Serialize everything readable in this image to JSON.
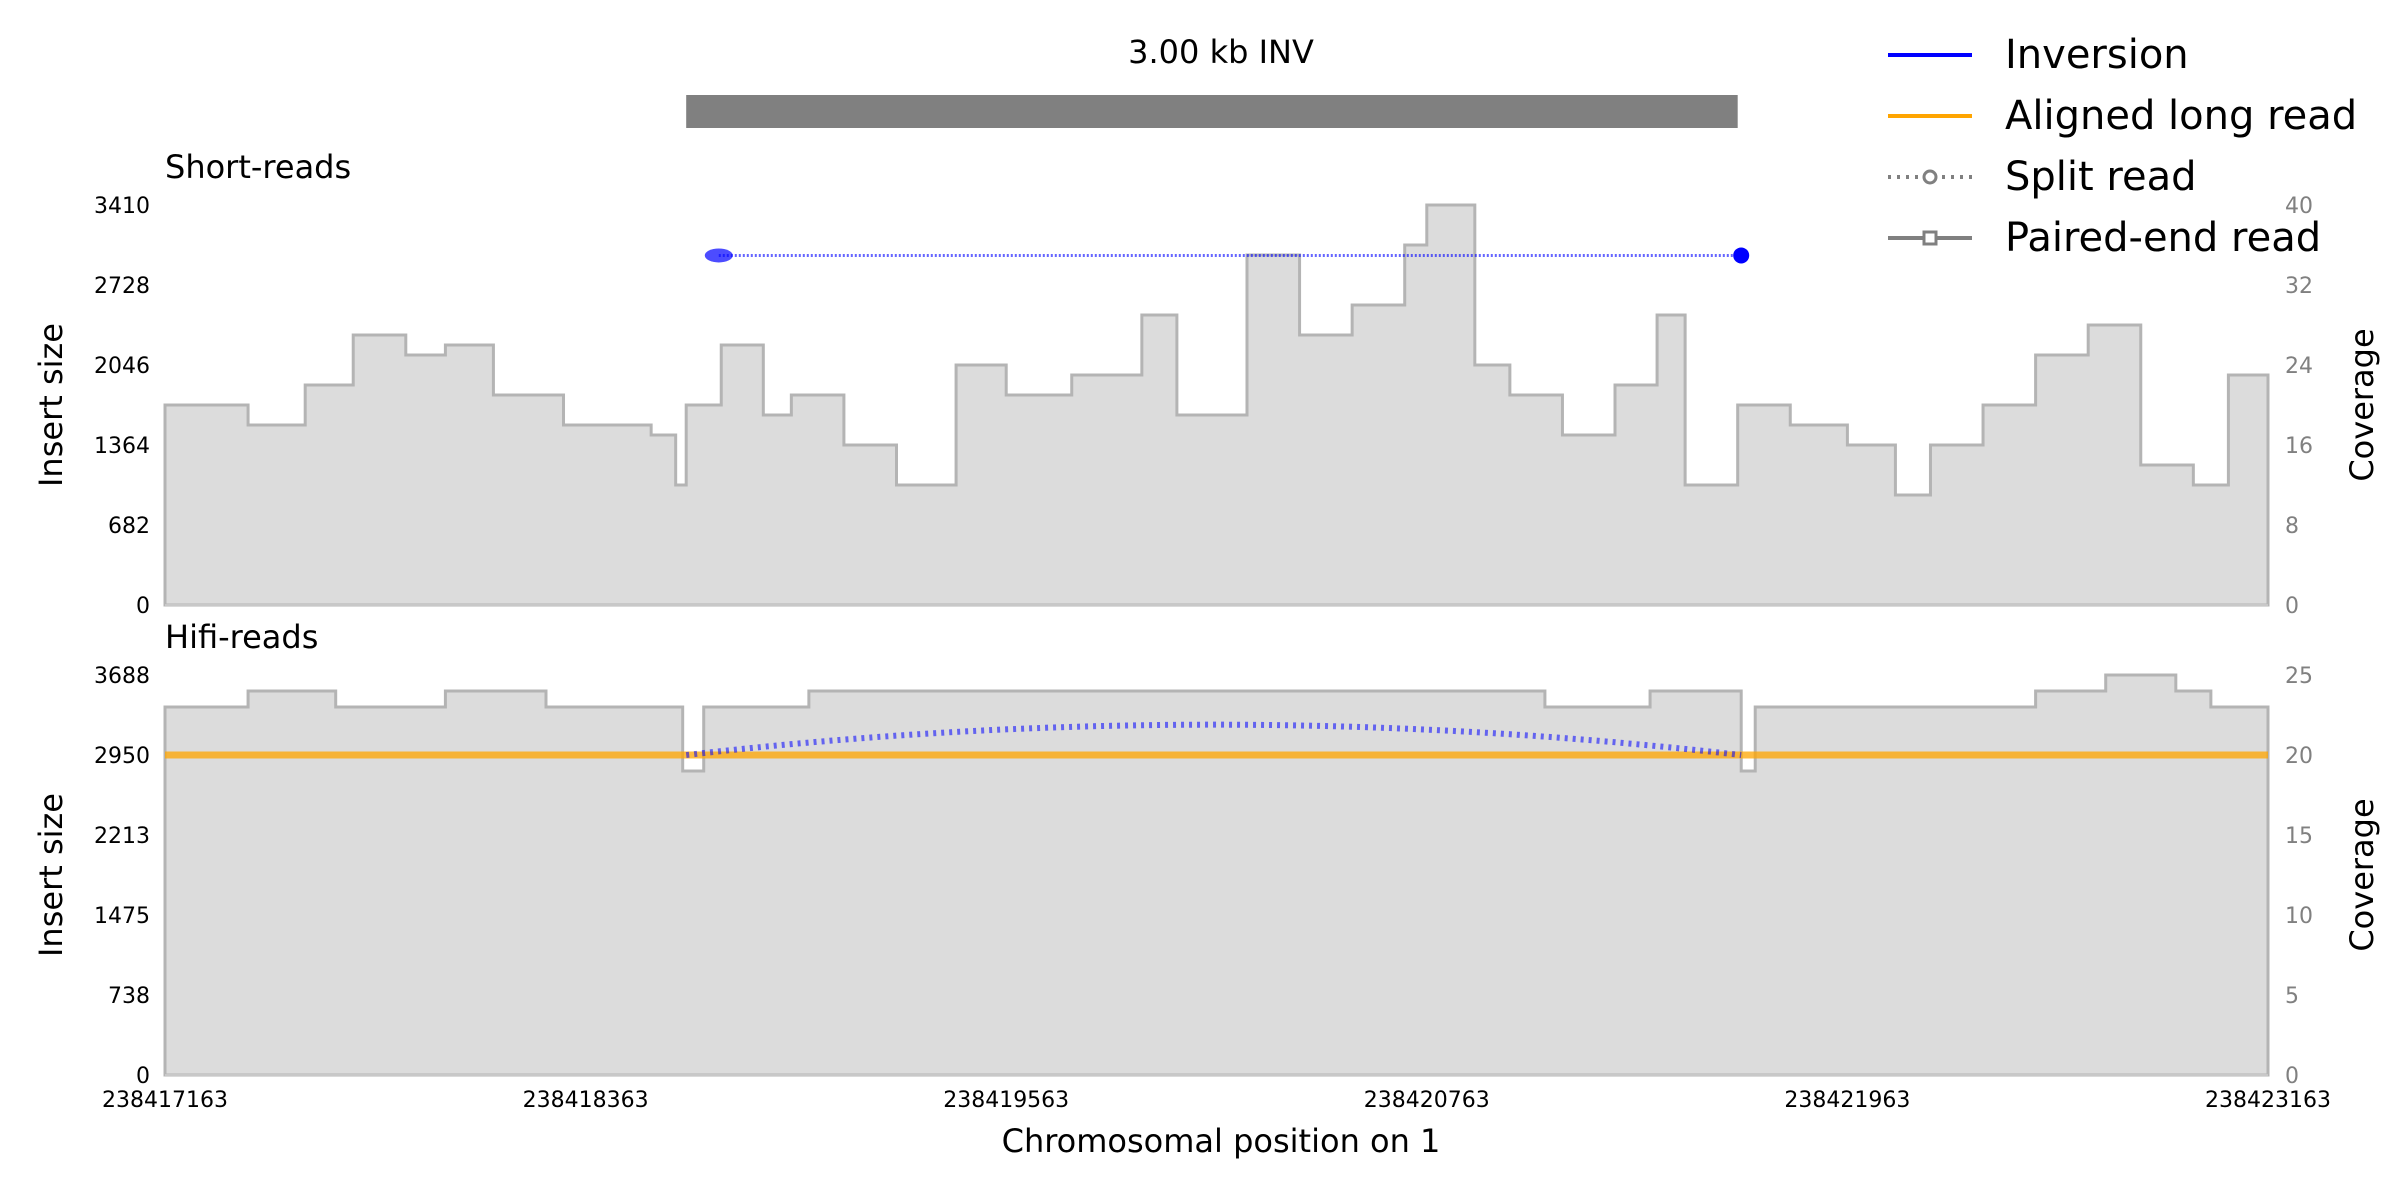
{
  "title": "3.00 kb INV",
  "colors": {
    "inversion": "#0000ff",
    "long_read": "#ffa500",
    "split_read": "#808080",
    "paired_read": "#808080",
    "coverage_fill": "#dcdcdc",
    "coverage_line": "#b4b4b4",
    "sv_bar": "#808080",
    "right_axis_text": "#808080"
  },
  "legend": {
    "placement": "top-right",
    "items": [
      {
        "label": "Inversion",
        "style": "line",
        "color": "#0000ff"
      },
      {
        "label": "Aligned long read",
        "style": "line",
        "color": "#ffa500"
      },
      {
        "label": "Split read",
        "style": "dotted-circle",
        "color": "#808080"
      },
      {
        "label": "Paired-end read",
        "style": "solid-square",
        "color": "#808080"
      }
    ]
  },
  "xlabel": "Chromosomal position on 1",
  "chart_data": {
    "type": "area",
    "title": "3.00 kb INV",
    "x_range": [
      238417163,
      238423163
    ],
    "x_ticks": [
      "238417163",
      "238418363",
      "238419563",
      "238420763",
      "238421963",
      "238423163"
    ],
    "xlabel": "Chromosomal position on 1",
    "sv": {
      "type": "INV",
      "start": 238418650,
      "end": 238421650
    },
    "panels": [
      {
        "name": "Short-reads",
        "ylabel_left": "Insert size",
        "ylabel_right": "Coverage",
        "y_left_range": [
          0,
          3410
        ],
        "y_left_ticks": [
          "0",
          "682",
          "1364",
          "2046",
          "2728",
          "3410"
        ],
        "y_right_range": [
          0,
          40
        ],
        "y_right_ticks": [
          "0",
          "8",
          "16",
          "24",
          "32",
          "40"
        ],
        "coverage": {
          "x": [
            238417163,
            238417400,
            238417563,
            238417700,
            238417850,
            238417963,
            238418100,
            238418300,
            238418550,
            238418620,
            238418650,
            238418750,
            238418870,
            238418950,
            238419100,
            238419250,
            238419420,
            238419563,
            238419750,
            238419950,
            238420050,
            238420250,
            238420400,
            238420550,
            238420700,
            238420763,
            238420900,
            238421000,
            238421150,
            238421300,
            238421420,
            238421500,
            238421650,
            238421800,
            238421963,
            238422100,
            238422200,
            238422350,
            238422500,
            238422650,
            238422800,
            238422950,
            238423050,
            238423163
          ],
          "values": [
            20,
            18,
            22,
            27,
            25,
            26,
            21,
            18,
            17,
            12,
            20,
            26,
            19,
            21,
            16,
            12,
            24,
            21,
            23,
            29,
            19,
            35,
            27,
            30,
            36,
            40,
            24,
            21,
            17,
            22,
            29,
            12,
            20,
            18,
            16,
            11,
            16,
            20,
            25,
            28,
            14,
            12,
            23,
            17
          ]
        },
        "inversion_line": {
          "x_start": 238418743,
          "x_end": 238421660,
          "y": 2980
        },
        "paired_end_reads": [],
        "split_reads": []
      },
      {
        "name": "Hifi-reads",
        "ylabel_left": "Insert size",
        "ylabel_right": "Coverage",
        "y_left_range": [
          0,
          3688
        ],
        "y_left_ticks": [
          "0",
          "738",
          "1475",
          "2213",
          "2950",
          "3688"
        ],
        "y_right_range": [
          0,
          25
        ],
        "y_right_ticks": [
          "0",
          "5",
          "10",
          "15",
          "20",
          "25"
        ],
        "coverage": {
          "x": [
            238417163,
            238417400,
            238417650,
            238417963,
            238418250,
            238418450,
            238418640,
            238418700,
            238419000,
            238419563,
            238419700,
            238420300,
            238420763,
            238421100,
            238421400,
            238421660,
            238421700,
            238421963,
            238422150,
            238422500,
            238422700,
            238422900,
            238423000,
            238423163
          ],
          "values": [
            23,
            24,
            23,
            24,
            23,
            23,
            19,
            23,
            24,
            24,
            24,
            24,
            24,
            23,
            24,
            19,
            23,
            23,
            23,
            24,
            25,
            24,
            23,
            22
          ]
        },
        "long_read_line": {
          "x_start": 238417163,
          "x_end": 238423163,
          "y": 2950
        },
        "inversion_arc": {
          "x_start": 238418650,
          "x_end": 238421660,
          "y_ends": 2950,
          "y_peak": 3230
        }
      }
    ]
  }
}
